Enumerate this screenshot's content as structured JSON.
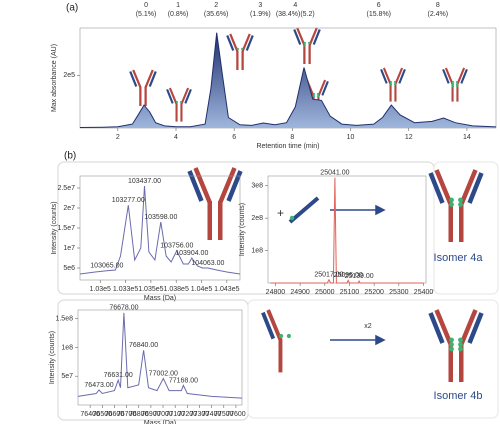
{
  "labels": {
    "panel_a": "(a)",
    "panel_b": "(b)",
    "plus": "+",
    "isomer_4a": "Isomer 4a",
    "multiplier": "x2",
    "isomer_4b": "Isomer 4b"
  },
  "chart_data": [
    {
      "type": "line",
      "area": true,
      "xlabel": "Retention time (min)",
      "ylabel": "Max absorbance (AU)",
      "xlim": [
        0.7,
        15.0
      ],
      "ylim": [
        0,
        380000
      ],
      "xticks": [
        2,
        4,
        6,
        8,
        10,
        12,
        14
      ],
      "yticks": [
        {
          "value": 200000,
          "label": "2e5"
        }
      ],
      "x": [
        0.7,
        1.5,
        2.0,
        2.5,
        2.7,
        2.9,
        3.1,
        3.3,
        3.6,
        4.0,
        4.5,
        5.0,
        5.2,
        5.4,
        5.6,
        5.8,
        6.2,
        6.6,
        7.0,
        7.4,
        7.8,
        8.1,
        8.4,
        8.7,
        9.0,
        9.3,
        9.7,
        10.2,
        10.8,
        11.1,
        11.4,
        11.7,
        12.2,
        12.8,
        13.2,
        13.6,
        14.2,
        15.0
      ],
      "series": [
        {
          "color": "#1f2f6e",
          "values": [
            2000,
            3000,
            5000,
            15000,
            50000,
            87000,
            60000,
            20000,
            8000,
            5000,
            5000,
            15000,
            150000,
            362000,
            200000,
            40000,
            12000,
            10000,
            19000,
            12000,
            20000,
            80000,
            230000,
            110000,
            105000,
            45000,
            15000,
            10000,
            15000,
            40000,
            87000,
            50000,
            20000,
            25000,
            38000,
            20000,
            8000,
            4000
          ]
        }
      ],
      "peaks": [
        {
          "label": "0",
          "share": "(5.1%)",
          "x": 2.97
        },
        {
          "label": "1",
          "share": "(0.8%)",
          "x": 4.07
        },
        {
          "label": "2",
          "share": "(35.6%)",
          "x": 5.38
        },
        {
          "label": "3",
          "share": "(1.9%)",
          "x": 6.9
        },
        {
          "label": "4",
          "share": "(38.4%)(5.2)",
          "x": 8.1
        },
        {
          "label": "6",
          "share": "(15.8%)",
          "x": 10.97
        },
        {
          "label": "8",
          "share": "(2.4%)",
          "x": 13.0
        }
      ]
    },
    {
      "type": "line",
      "xlabel": "Mass (Da)",
      "ylabel": "Intensity (counts)",
      "xlim": [
        102800,
        104380
      ],
      "ylim": [
        2000000,
        28000000
      ],
      "xticks": [
        {
          "value": 103000,
          "label": "1.03e5"
        },
        {
          "value": 103250,
          "label": "1.033e5"
        },
        {
          "value": 103500,
          "label": "1.035e5"
        },
        {
          "value": 103750,
          "label": "1.038e5"
        },
        {
          "value": 104000,
          "label": "1.04e5"
        },
        {
          "value": 104250,
          "label": "1.043e5"
        }
      ],
      "yticks": [
        {
          "value": 5000000,
          "label": "5e6"
        },
        {
          "value": 10000000,
          "label": "1e7"
        },
        {
          "value": 15000000,
          "label": "1.5e7"
        },
        {
          "value": 20000000,
          "label": "2e7"
        },
        {
          "value": 25000000,
          "label": "2.5e7"
        }
      ],
      "x": [
        102800,
        102950,
        103065,
        103150,
        103200,
        103277,
        103340,
        103400,
        103437,
        103480,
        103540,
        103598,
        103650,
        103700,
        103756,
        103820,
        103870,
        103904,
        103960,
        104010,
        104063,
        104150,
        104250,
        104380
      ],
      "series": [
        {
          "color": "#6b6bb0",
          "values": [
            3500000,
            4000000,
            4300000,
            4500000,
            8000000,
            20700000,
            7000000,
            10000000,
            25500000,
            9000000,
            7000000,
            16500000,
            8000000,
            6500000,
            9300000,
            6000000,
            6000000,
            7500000,
            5500000,
            5000000,
            5000000,
            4500000,
            4000000,
            3500000
          ]
        }
      ],
      "peak_labels": [
        {
          "x": 103065,
          "y": 4300000,
          "label": "103065.00"
        },
        {
          "x": 103277,
          "y": 20700000,
          "label": "103277.00"
        },
        {
          "x": 103437,
          "y": 25500000,
          "label": "103437.00"
        },
        {
          "x": 103598,
          "y": 16500000,
          "label": "103598.00"
        },
        {
          "x": 103756,
          "y": 9300000,
          "label": "103756.00"
        },
        {
          "x": 103904,
          "y": 7500000,
          "label": "103904.00"
        },
        {
          "x": 104063,
          "y": 5000000,
          "label": "104063.00"
        }
      ]
    },
    {
      "type": "line",
      "ylabel": "Intensity (counts)",
      "xlim": [
        24770,
        25410
      ],
      "ylim": [
        0,
        330000000
      ],
      "xticks": [
        24800,
        24900,
        25000,
        25100,
        25200,
        25300,
        25400
      ],
      "yticks": [
        {
          "value": 100000000,
          "label": "1e8"
        },
        {
          "value": 200000000,
          "label": "2e8"
        },
        {
          "value": 300000000,
          "label": "3e8"
        }
      ],
      "x": [
        24780,
        25010,
        25017,
        25024,
        25035,
        25041,
        25047,
        25060,
        25090,
        25095,
        25100,
        25135,
        25139,
        25143,
        25400
      ],
      "series": [
        {
          "color": "#e0605a",
          "values": [
            0,
            0,
            10000000,
            0,
            0,
            325000000,
            0,
            0,
            0,
            8000000,
            0,
            0,
            6000000,
            0,
            0
          ]
        }
      ],
      "peak_labels": [
        {
          "x": 25041,
          "y": 325000000,
          "label": "25041.00"
        },
        {
          "x": 25017,
          "y": 10000000,
          "label": "25017.00"
        },
        {
          "x": 25095,
          "y": 8000000,
          "label": "25095.00"
        },
        {
          "x": 25139,
          "y": 6000000,
          "label": "25139.00"
        }
      ]
    },
    {
      "type": "line",
      "xlabel": "Mass (Da)",
      "ylabel": "Intensity (counts)",
      "xlim": [
        76300,
        77650
      ],
      "ylim": [
        0,
        165000000
      ],
      "xticks": [
        76400,
        76500,
        76600,
        76700,
        76800,
        76900,
        77000,
        77100,
        77200,
        77300,
        77400,
        77500,
        77600
      ],
      "yticks": [
        {
          "value": 50000000,
          "label": "5e7"
        },
        {
          "value": 100000000,
          "label": "1e8"
        },
        {
          "value": 150000000,
          "label": "1.5e8"
        }
      ],
      "x": [
        76300,
        76450,
        76473,
        76500,
        76600,
        76631,
        76650,
        76678,
        76710,
        76800,
        76840,
        76880,
        76950,
        77002,
        77050,
        77150,
        77168,
        77200,
        77400,
        77650
      ],
      "series": [
        {
          "color": "#6b6bb0",
          "values": [
            15000000,
            20000000,
            26000000,
            20000000,
            25000000,
            43000000,
            30000000,
            160000000,
            30000000,
            35000000,
            95000000,
            30000000,
            25000000,
            46000000,
            25000000,
            25000000,
            34000000,
            20000000,
            15000000,
            12000000
          ]
        }
      ],
      "peak_labels": [
        {
          "x": 76678,
          "y": 160000000,
          "label": "76678.00"
        },
        {
          "x": 76840,
          "y": 95000000,
          "label": "76840.00"
        },
        {
          "x": 76631,
          "y": 43000000,
          "label": "76631.00"
        },
        {
          "x": 76473,
          "y": 26000000,
          "label": "76473.00"
        },
        {
          "x": 77002,
          "y": 46000000,
          "label": "77002.00"
        },
        {
          "x": 77168,
          "y": 34000000,
          "label": "77168.00"
        }
      ]
    }
  ]
}
